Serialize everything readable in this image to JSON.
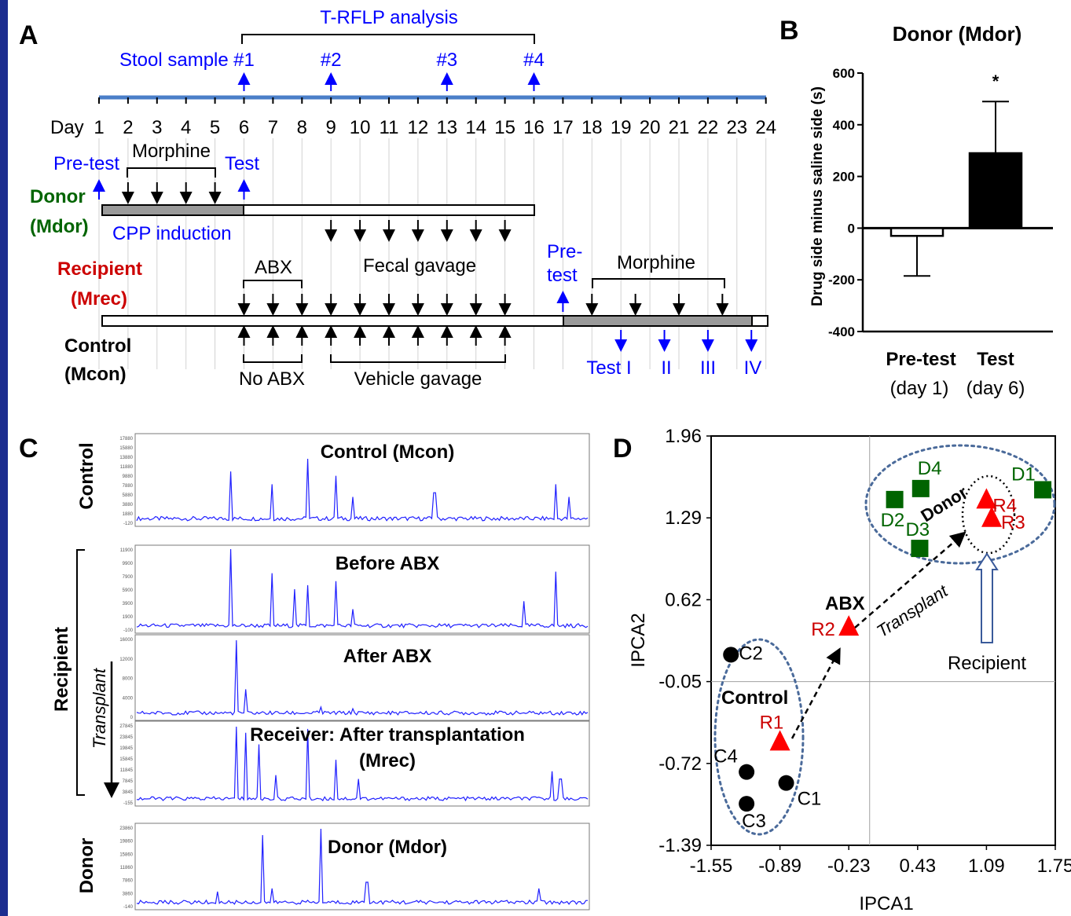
{
  "panels": {
    "a": "A",
    "b": "B",
    "c": "C",
    "d": "D"
  },
  "timeline": {
    "trflp": "T-RFLP analysis",
    "stool_label": "Stool sample",
    "stool_samples": [
      {
        "label": "#1",
        "day": 6
      },
      {
        "label": "#2",
        "day": 9
      },
      {
        "label": "#3",
        "day": 13
      },
      {
        "label": "#4",
        "day": 16
      }
    ],
    "day_label": "Day",
    "days": [
      "1",
      "2",
      "3",
      "4",
      "5",
      "6",
      "7",
      "8",
      "9",
      "10",
      "11",
      "12",
      "13",
      "14",
      "15",
      "16",
      "17",
      "18",
      "19",
      "20",
      "21",
      "22",
      "23",
      "24"
    ],
    "pretest": "Pre-test",
    "morphine": "Morphine",
    "test": "Test",
    "donor": "Donor",
    "donor_code": "(Mdor)",
    "cpp": "CPP induction",
    "recipient": "Recipient",
    "recipient_code": "(Mrec)",
    "abx": "ABX",
    "fecal": "Fecal gavage",
    "pre_l1": "Pre-",
    "pre_l2": "test",
    "morphine2": "Morphine",
    "control": "Control",
    "control_code": "(Mcon)",
    "noabx": "No ABX",
    "vehicle": "Vehicle gavage",
    "tests": [
      "Test I",
      "II",
      "III",
      "IV"
    ]
  },
  "panel_b": {
    "title": "Donor (Mdor)",
    "ylabel": "Drug side minus saline side (s)",
    "cat1": "Pre-test",
    "cat1_sub": "(day 1)",
    "cat2": "Test",
    "cat2_sub": "(day 6)",
    "star": "*"
  },
  "panel_c": {
    "traces": [
      {
        "title": "Control (Mcon)",
        "ticks": [
          "17880",
          "15880",
          "13880",
          "11880",
          "9880",
          "7880",
          "5880",
          "3880",
          "1880",
          "-120"
        ]
      },
      {
        "title": "Before ABX",
        "ticks": [
          "11900",
          "9900",
          "7900",
          "5900",
          "3900",
          "1900",
          "-100"
        ]
      },
      {
        "title": "After ABX",
        "ticks": [
          "16000",
          "12000",
          "8000",
          "4000",
          "0"
        ]
      },
      {
        "title": "Receiver: After transplantation",
        "title2": "(Mrec)",
        "ticks": [
          "27845",
          "23845",
          "19845",
          "15845",
          "11845",
          "7845",
          "3845",
          "-155"
        ]
      },
      {
        "title": "Donor (Mdor)",
        "ticks": [
          "23860",
          "19860",
          "15860",
          "11860",
          "7860",
          "3860",
          "-140"
        ]
      }
    ],
    "side_control": "Control",
    "side_recipient": "Recipient",
    "side_donor": "Donor",
    "transplant": "Transplant"
  },
  "panel_d": {
    "xlabel": "IPCA1",
    "ylabel": "IPCA2",
    "control_label": "Control",
    "donor_label": "Donor",
    "abx_label": "ABX",
    "transplant": "Transplant",
    "recipient": "Recipient"
  },
  "chart_data": [
    {
      "type": "bar",
      "title": "Donor (Mdor)",
      "xlabel": "",
      "ylabel": "Drug side minus saline side (s)",
      "categories": [
        "Pre-test (day 1)",
        "Test (day 6)"
      ],
      "values": [
        -30,
        290
      ],
      "error_bars": [
        {
          "low": -185,
          "high": -30
        },
        {
          "low": 290,
          "high": 490
        }
      ],
      "ylim": [
        -400,
        600
      ],
      "yticks": [
        "600",
        "400",
        "200",
        "0",
        "-200",
        "-400"
      ],
      "annotations": [
        "*"
      ],
      "colors": [
        "#ffffff",
        "#000000"
      ]
    },
    {
      "type": "scatter",
      "xlabel": "IPCA1",
      "ylabel": "IPCA2",
      "xlim": [
        -1.55,
        1.75
      ],
      "ylim": [
        -1.39,
        1.96
      ],
      "xticks": [
        "-1.55",
        "-0.89",
        "-0.23",
        "0.43",
        "1.09",
        "1.75"
      ],
      "yticks": [
        "1.96",
        "1.29",
        "0.62",
        "-0.05",
        "-0.72",
        "-1.39"
      ],
      "series": [
        {
          "name": "Control",
          "color": "#000000",
          "marker": "circle",
          "points": [
            {
              "label": "C1",
              "x": -0.83,
              "y": -0.88
            },
            {
              "label": "C2",
              "x": -1.36,
              "y": 0.17
            },
            {
              "label": "C3",
              "x": -1.21,
              "y": -1.05
            },
            {
              "label": "C4",
              "x": -1.21,
              "y": -0.79
            }
          ]
        },
        {
          "name": "Recipient",
          "color": "#ff0000",
          "marker": "triangle",
          "points": [
            {
              "label": "R1",
              "x": -0.89,
              "y": -0.55
            },
            {
              "label": "R2",
              "x": -0.23,
              "y": 0.39
            },
            {
              "label": "R3",
              "x": 1.14,
              "y": 1.28
            },
            {
              "label": "R4",
              "x": 1.09,
              "y": 1.43
            }
          ]
        },
        {
          "name": "Donor",
          "color": "#006400",
          "marker": "square",
          "points": [
            {
              "label": "D1",
              "x": 1.63,
              "y": 1.52
            },
            {
              "label": "D2",
              "x": 0.21,
              "y": 1.44
            },
            {
              "label": "D3",
              "x": 0.45,
              "y": 1.04
            },
            {
              "label": "D4",
              "x": 0.46,
              "y": 1.53
            }
          ]
        }
      ]
    }
  ]
}
